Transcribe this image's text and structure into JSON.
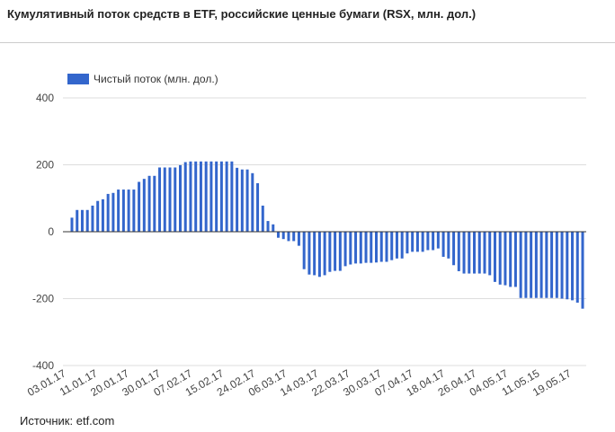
{
  "title": "Кумулятивный поток средств в ETF, российские ценные бумаги (RSX, млн. дол.)",
  "source": "Источник: etf.com",
  "chart_data": {
    "type": "bar",
    "title": "Кумулятивный поток средств в ETF, российские ценные бумаги (RSX, млн. дол.)",
    "xlabel": "",
    "ylabel": "",
    "ylim": [
      -400,
      400
    ],
    "yticks": [
      400,
      200,
      0,
      -200,
      -400
    ],
    "grid": true,
    "legend_position": "top-left",
    "colors": {
      "bar": "#3366cc",
      "grid": "#dddddd",
      "axis_text": "#444444"
    },
    "xtick_labels": [
      "03.01.17",
      "11.01.17",
      "20.01.17",
      "30.01.17",
      "07.02.17",
      "15.02.17",
      "24.02.17",
      "06.03.17",
      "14.03.17",
      "22.03.17",
      "30.03.17",
      "07.04.17",
      "18.04.17",
      "26.04.17",
      "04.05.17",
      "11.05.15",
      "19.05.17"
    ],
    "series": [
      {
        "name": "Чистый поток (млн. дол.)",
        "values": [
          42,
          65,
          65,
          65,
          78,
          92,
          97,
          113,
          116,
          126,
          126,
          126,
          126,
          149,
          158,
          167,
          167,
          192,
          192,
          192,
          192,
          199,
          208,
          210,
          210,
          210,
          210,
          210,
          210,
          210,
          210,
          210,
          191,
          186,
          186,
          175,
          145,
          78,
          32,
          22,
          -18,
          -22,
          -28,
          -28,
          -42,
          -112,
          -128,
          -130,
          -135,
          -130,
          -120,
          -117,
          -117,
          -103,
          -98,
          -95,
          -95,
          -93,
          -93,
          -92,
          -90,
          -90,
          -85,
          -80,
          -80,
          -65,
          -60,
          -60,
          -60,
          -55,
          -55,
          -50,
          -75,
          -80,
          -100,
          -118,
          -125,
          -125,
          -125,
          -125,
          -125,
          -130,
          -150,
          -158,
          -160,
          -165,
          -165,
          -198,
          -198,
          -198,
          -198,
          -198,
          -198,
          -198,
          -198,
          -200,
          -202,
          -205,
          -212,
          -230
        ]
      }
    ]
  }
}
